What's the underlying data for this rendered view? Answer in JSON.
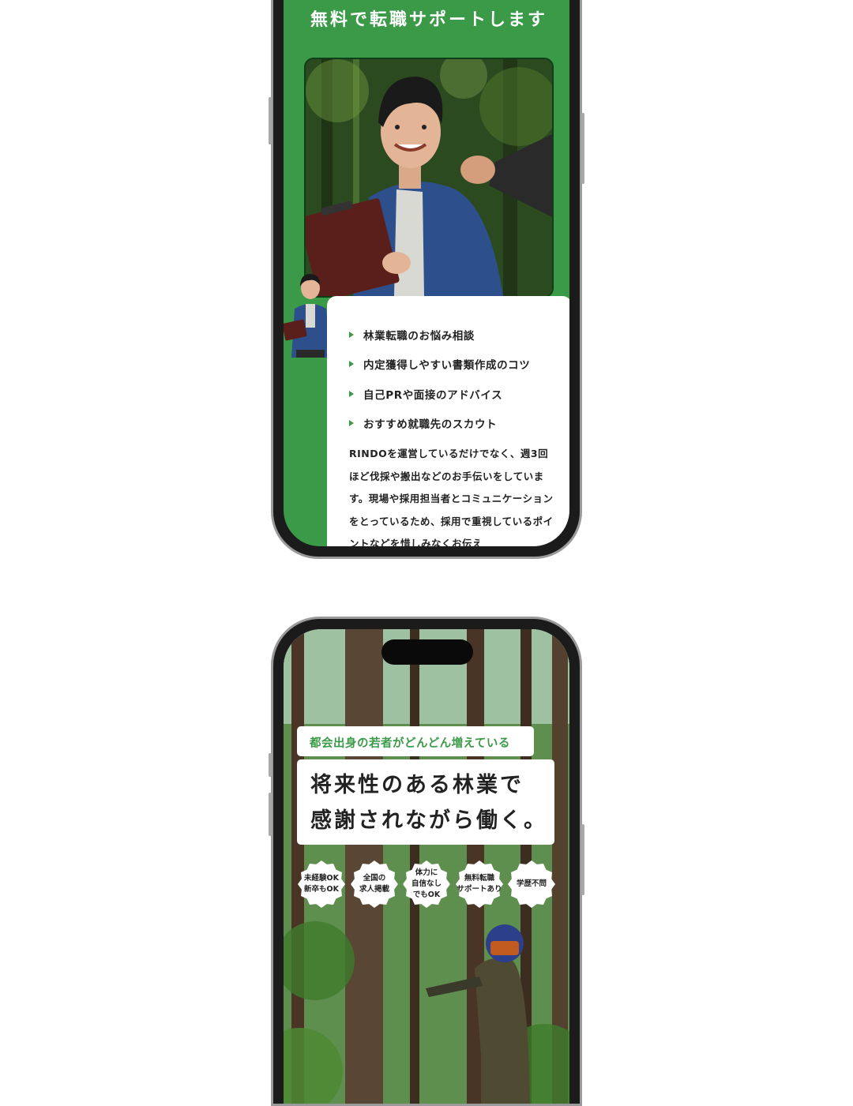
{
  "colors": {
    "brand_green": "#3a9a48",
    "text": "#222222",
    "white": "#ffffff"
  },
  "support_screen": {
    "title": "無料で転職サポートします",
    "features": [
      {
        "icon": "triangle-bullet-icon",
        "label": "林業転職のお悩み相談"
      },
      {
        "icon": "triangle-bullet-icon",
        "label": "内定獲得しやすい書類作成のコツ"
      },
      {
        "icon": "triangle-bullet-icon",
        "label": "自己PRや面接のアドバイス"
      },
      {
        "icon": "triangle-bullet-icon",
        "label": "おすすめ就職先のスカウト"
      }
    ],
    "description": "RINDOを運営しているだけでなく、週3回ほど伐採や搬出などのお手伝いをしています。現場や採用担当者とコミュニケーションをとっているため、採用で重視しているポイントなどを惜しみなくお伝え"
  },
  "hero_screen": {
    "tagline": "都会出身の若者がどんどん増えている",
    "headline_line1": "将来性のある林業で",
    "headline_line2": "感謝されながら働く。",
    "badges": [
      {
        "label": "未経験OK\n新卒もOK"
      },
      {
        "label": "全国の\n求人掲載"
      },
      {
        "label": "体力に\n自信なし\nでもOK"
      },
      {
        "label": "無料転職\nサポートあり"
      },
      {
        "label": "学歴不問"
      }
    ]
  }
}
